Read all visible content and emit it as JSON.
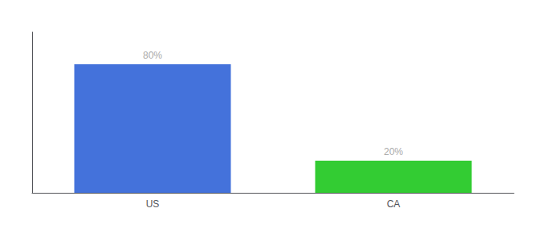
{
  "chart_data": {
    "type": "bar",
    "categories": [
      "US",
      "CA"
    ],
    "values": [
      80,
      20
    ],
    "colors": [
      "#4472db",
      "#33cc33"
    ],
    "ylim": [
      0,
      100
    ],
    "data_labels": true,
    "value_labels": [
      "80%",
      "20%"
    ],
    "tick_labels": "x",
    "grid": false
  }
}
